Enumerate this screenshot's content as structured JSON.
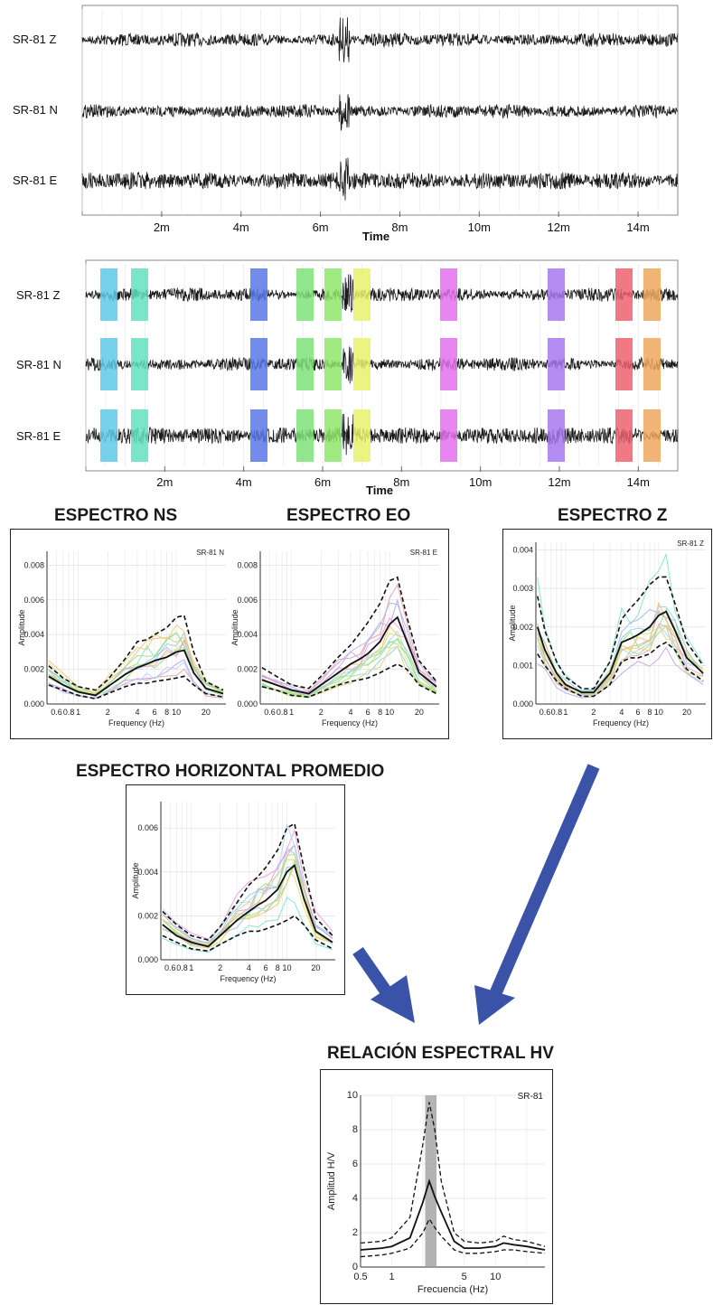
{
  "waveforms": {
    "top": {
      "channels": [
        "SR-81 Z",
        "SR-81 N",
        "SR-81 E"
      ],
      "ticks": [
        "2m",
        "4m",
        "6m",
        "8m",
        "10m",
        "12m",
        "14m"
      ],
      "xlabel": "Time"
    },
    "windows": {
      "channels": [
        "SR-81 Z",
        "SR-81 N",
        "SR-81 E"
      ],
      "ticks": [
        "2m",
        "4m",
        "6m",
        "8m",
        "10m",
        "12m",
        "14m"
      ],
      "xlabel": "Time",
      "window_colors": [
        "#5ec9ea",
        "#64e0c0",
        "#5a78e8",
        "#7ee27a",
        "#8ee86a",
        "#e8f26a",
        "#e470ee",
        "#a878ee",
        "#ee6070",
        "#f0a860"
      ]
    }
  },
  "headings": {
    "ns": "ESPECTRO NS",
    "eo": "ESPECTRO EO",
    "z": "ESPECTRO Z",
    "horiz": "ESPECTRO HORIZONTAL PROMEDIO",
    "hv": "RELACIÓN ESPECTRAL HV"
  },
  "chart_data": [
    {
      "type": "line",
      "id": "ns",
      "panel_label": "SR-81 N",
      "xlabel": "Frequency (Hz)",
      "ylabel": "Amplitude",
      "x_ticks": [
        "0.6",
        "0.8",
        "1",
        "2",
        "4",
        "6",
        "8",
        "10",
        "20"
      ],
      "y_ticks": [
        "0.000",
        "0.002",
        "0.004",
        "0.006",
        "0.008"
      ],
      "ylim": [
        0,
        0.0088
      ],
      "x_scale": "log",
      "mean": [
        [
          0.5,
          0.0016
        ],
        [
          0.7,
          0.0011
        ],
        [
          1,
          0.0007
        ],
        [
          1.5,
          0.0005
        ],
        [
          2,
          0.001
        ],
        [
          3,
          0.0017
        ],
        [
          4,
          0.0021
        ],
        [
          5,
          0.0023
        ],
        [
          6,
          0.0025
        ],
        [
          8,
          0.0027
        ],
        [
          10,
          0.003
        ],
        [
          12,
          0.0031
        ],
        [
          15,
          0.0018
        ],
        [
          20,
          0.0009
        ],
        [
          30,
          0.0006
        ]
      ],
      "upper": [
        [
          0.5,
          0.0022
        ],
        [
          0.7,
          0.0015
        ],
        [
          1,
          0.001
        ],
        [
          1.5,
          0.0008
        ],
        [
          2,
          0.0014
        ],
        [
          3,
          0.0026
        ],
        [
          4,
          0.0036
        ],
        [
          5,
          0.0037
        ],
        [
          6,
          0.004
        ],
        [
          8,
          0.0044
        ],
        [
          10,
          0.005
        ],
        [
          12,
          0.0051
        ],
        [
          15,
          0.003
        ],
        [
          20,
          0.0013
        ],
        [
          30,
          0.0008
        ]
      ],
      "lower": [
        [
          0.5,
          0.0011
        ],
        [
          0.7,
          0.0008
        ],
        [
          1,
          0.0005
        ],
        [
          1.5,
          0.0003
        ],
        [
          2,
          0.0006
        ],
        [
          3,
          0.001
        ],
        [
          4,
          0.0012
        ],
        [
          5,
          0.0012
        ],
        [
          6,
          0.0013
        ],
        [
          8,
          0.0014
        ],
        [
          10,
          0.0015
        ],
        [
          12,
          0.0016
        ],
        [
          15,
          0.0011
        ],
        [
          20,
          0.0006
        ],
        [
          30,
          0.0004
        ]
      ]
    },
    {
      "type": "line",
      "id": "eo",
      "panel_label": "SR-81 E",
      "xlabel": "Frequency (Hz)",
      "ylabel": "Amplitude",
      "x_ticks": [
        "0.6",
        "0.8",
        "1",
        "2",
        "4",
        "6",
        "8",
        "10",
        "20"
      ],
      "y_ticks": [
        "0.000",
        "0.002",
        "0.004",
        "0.006",
        "0.008"
      ],
      "ylim": [
        0,
        0.0088
      ],
      "x_scale": "log",
      "mean": [
        [
          0.5,
          0.0014
        ],
        [
          0.7,
          0.0011
        ],
        [
          1,
          0.0008
        ],
        [
          1.5,
          0.0006
        ],
        [
          2,
          0.0011
        ],
        [
          3,
          0.0018
        ],
        [
          4,
          0.0023
        ],
        [
          5,
          0.0026
        ],
        [
          6,
          0.0029
        ],
        [
          8,
          0.0036
        ],
        [
          10,
          0.0046
        ],
        [
          12,
          0.005
        ],
        [
          15,
          0.0036
        ],
        [
          20,
          0.0018
        ],
        [
          30,
          0.001
        ]
      ],
      "upper": [
        [
          0.5,
          0.0021
        ],
        [
          0.7,
          0.0016
        ],
        [
          1,
          0.0011
        ],
        [
          1.5,
          0.0009
        ],
        [
          2,
          0.0016
        ],
        [
          3,
          0.0027
        ],
        [
          4,
          0.0034
        ],
        [
          5,
          0.0041
        ],
        [
          6,
          0.0047
        ],
        [
          8,
          0.0058
        ],
        [
          10,
          0.0071
        ],
        [
          12,
          0.0073
        ],
        [
          15,
          0.005
        ],
        [
          20,
          0.0025
        ],
        [
          30,
          0.0013
        ]
      ],
      "lower": [
        [
          0.5,
          0.001
        ],
        [
          0.7,
          0.0008
        ],
        [
          1,
          0.0005
        ],
        [
          1.5,
          0.0004
        ],
        [
          2,
          0.0007
        ],
        [
          3,
          0.0011
        ],
        [
          4,
          0.0013
        ],
        [
          5,
          0.0014
        ],
        [
          6,
          0.0015
        ],
        [
          8,
          0.0018
        ],
        [
          10,
          0.0021
        ],
        [
          12,
          0.0023
        ],
        [
          15,
          0.002
        ],
        [
          20,
          0.0011
        ],
        [
          30,
          0.0006
        ]
      ]
    },
    {
      "type": "line",
      "id": "z",
      "panel_label": "SR-81 Z",
      "xlabel": "Frequency (Hz)",
      "ylabel": "Amplitude",
      "x_ticks": [
        "0.6",
        "0.8",
        "1",
        "2",
        "4",
        "6",
        "8",
        "10",
        "20"
      ],
      "y_ticks": [
        "0.000",
        "0.001",
        "0.002",
        "0.003",
        "0.004"
      ],
      "ylim": [
        0,
        0.0042
      ],
      "x_scale": "log",
      "mean": [
        [
          0.5,
          0.002
        ],
        [
          0.6,
          0.0014
        ],
        [
          0.8,
          0.0008
        ],
        [
          1,
          0.0005
        ],
        [
          1.5,
          0.0003
        ],
        [
          2,
          0.0003
        ],
        [
          3,
          0.0008
        ],
        [
          4,
          0.0016
        ],
        [
          5,
          0.0017
        ],
        [
          6,
          0.0018
        ],
        [
          8,
          0.002
        ],
        [
          10,
          0.0023
        ],
        [
          12,
          0.0024
        ],
        [
          15,
          0.0019
        ],
        [
          20,
          0.0012
        ],
        [
          30,
          0.0008
        ]
      ],
      "upper": [
        [
          0.5,
          0.0028
        ],
        [
          0.6,
          0.0019
        ],
        [
          0.8,
          0.0011
        ],
        [
          1,
          0.0007
        ],
        [
          1.5,
          0.0004
        ],
        [
          2,
          0.0004
        ],
        [
          3,
          0.0011
        ],
        [
          4,
          0.0022
        ],
        [
          5,
          0.0025
        ],
        [
          6,
          0.0027
        ],
        [
          8,
          0.0031
        ],
        [
          10,
          0.0033
        ],
        [
          12,
          0.0033
        ],
        [
          15,
          0.0026
        ],
        [
          20,
          0.0016
        ],
        [
          30,
          0.001
        ]
      ],
      "lower": [
        [
          0.5,
          0.0013
        ],
        [
          0.6,
          0.001
        ],
        [
          0.8,
          0.0006
        ],
        [
          1,
          0.0004
        ],
        [
          1.5,
          0.0002
        ],
        [
          2,
          0.0002
        ],
        [
          3,
          0.0005
        ],
        [
          4,
          0.0011
        ],
        [
          5,
          0.0012
        ],
        [
          6,
          0.0012
        ],
        [
          8,
          0.0013
        ],
        [
          10,
          0.0015
        ],
        [
          12,
          0.0016
        ],
        [
          15,
          0.0014
        ],
        [
          20,
          0.0009
        ],
        [
          30,
          0.0006
        ]
      ]
    },
    {
      "type": "line",
      "id": "horiz",
      "xlabel": "Frequency (Hz)",
      "ylabel": "Amplitude",
      "x_ticks": [
        "0.6",
        "0.8",
        "1",
        "2",
        "4",
        "6",
        "8",
        "10",
        "20"
      ],
      "y_ticks": [
        "0.000",
        "0.002",
        "0.004",
        "0.006"
      ],
      "ylim": [
        0,
        0.0072
      ],
      "x_scale": "log",
      "mean": [
        [
          0.5,
          0.0016
        ],
        [
          0.7,
          0.0011
        ],
        [
          1,
          0.0008
        ],
        [
          1.5,
          0.0006
        ],
        [
          2,
          0.0011
        ],
        [
          3,
          0.0018
        ],
        [
          4,
          0.0022
        ],
        [
          5,
          0.0025
        ],
        [
          6,
          0.0027
        ],
        [
          8,
          0.0032
        ],
        [
          10,
          0.004
        ],
        [
          12,
          0.0043
        ],
        [
          15,
          0.0028
        ],
        [
          20,
          0.0013
        ],
        [
          30,
          0.0008
        ]
      ],
      "upper": [
        [
          0.5,
          0.0022
        ],
        [
          0.7,
          0.0016
        ],
        [
          1,
          0.0011
        ],
        [
          1.5,
          0.0009
        ],
        [
          2,
          0.0015
        ],
        [
          3,
          0.0026
        ],
        [
          4,
          0.0034
        ],
        [
          5,
          0.0038
        ],
        [
          6,
          0.0042
        ],
        [
          8,
          0.005
        ],
        [
          10,
          0.006
        ],
        [
          12,
          0.0062
        ],
        [
          15,
          0.0042
        ],
        [
          20,
          0.0019
        ],
        [
          30,
          0.0011
        ]
      ],
      "lower": [
        [
          0.5,
          0.0011
        ],
        [
          0.7,
          0.0008
        ],
        [
          1,
          0.0005
        ],
        [
          1.5,
          0.0004
        ],
        [
          2,
          0.0007
        ],
        [
          3,
          0.0011
        ],
        [
          4,
          0.0013
        ],
        [
          5,
          0.0013
        ],
        [
          6,
          0.0014
        ],
        [
          8,
          0.0016
        ],
        [
          10,
          0.0018
        ],
        [
          12,
          0.002
        ],
        [
          15,
          0.0016
        ],
        [
          20,
          0.0009
        ],
        [
          30,
          0.0005
        ]
      ]
    },
    {
      "type": "line",
      "id": "hv",
      "panel_label": "SR-81",
      "xlabel": "Frecuencia (Hz)",
      "ylabel": "Amplitud H/V",
      "x_ticks": [
        "0.5",
        "1",
        "5",
        "10"
      ],
      "y_ticks": [
        "0",
        "2",
        "4",
        "6",
        "8",
        "10"
      ],
      "ylim": [
        0,
        10
      ],
      "xlim": [
        0.5,
        30
      ],
      "x_scale": "log",
      "peak_band": [
        2.1,
        2.7
      ],
      "mean": [
        [
          0.5,
          1.0
        ],
        [
          0.8,
          1.1
        ],
        [
          1,
          1.2
        ],
        [
          1.5,
          1.7
        ],
        [
          2,
          3.8
        ],
        [
          2.3,
          5.0
        ],
        [
          2.6,
          4.1
        ],
        [
          3,
          3.2
        ],
        [
          4,
          1.5
        ],
        [
          5,
          1.1
        ],
        [
          7,
          1.1
        ],
        [
          10,
          1.2
        ],
        [
          12,
          1.4
        ],
        [
          15,
          1.3
        ],
        [
          20,
          1.2
        ],
        [
          30,
          1.0
        ]
      ],
      "upper": [
        [
          0.5,
          1.4
        ],
        [
          0.8,
          1.5
        ],
        [
          1,
          1.7
        ],
        [
          1.5,
          2.9
        ],
        [
          2,
          7.2
        ],
        [
          2.3,
          9.6
        ],
        [
          2.6,
          8.0
        ],
        [
          3,
          5.0
        ],
        [
          4,
          2.0
        ],
        [
          5,
          1.5
        ],
        [
          7,
          1.4
        ],
        [
          10,
          1.5
        ],
        [
          12,
          1.8
        ],
        [
          15,
          1.6
        ],
        [
          20,
          1.5
        ],
        [
          30,
          1.2
        ]
      ],
      "lower": [
        [
          0.5,
          0.6
        ],
        [
          0.8,
          0.7
        ],
        [
          1,
          0.8
        ],
        [
          1.5,
          1.1
        ],
        [
          2,
          2.0
        ],
        [
          2.3,
          2.8
        ],
        [
          2.6,
          2.3
        ],
        [
          3,
          1.8
        ],
        [
          4,
          1.0
        ],
        [
          5,
          0.8
        ],
        [
          7,
          0.8
        ],
        [
          10,
          0.9
        ],
        [
          12,
          1.0
        ],
        [
          15,
          1.0
        ],
        [
          20,
          0.9
        ],
        [
          30,
          0.8
        ]
      ]
    }
  ]
}
